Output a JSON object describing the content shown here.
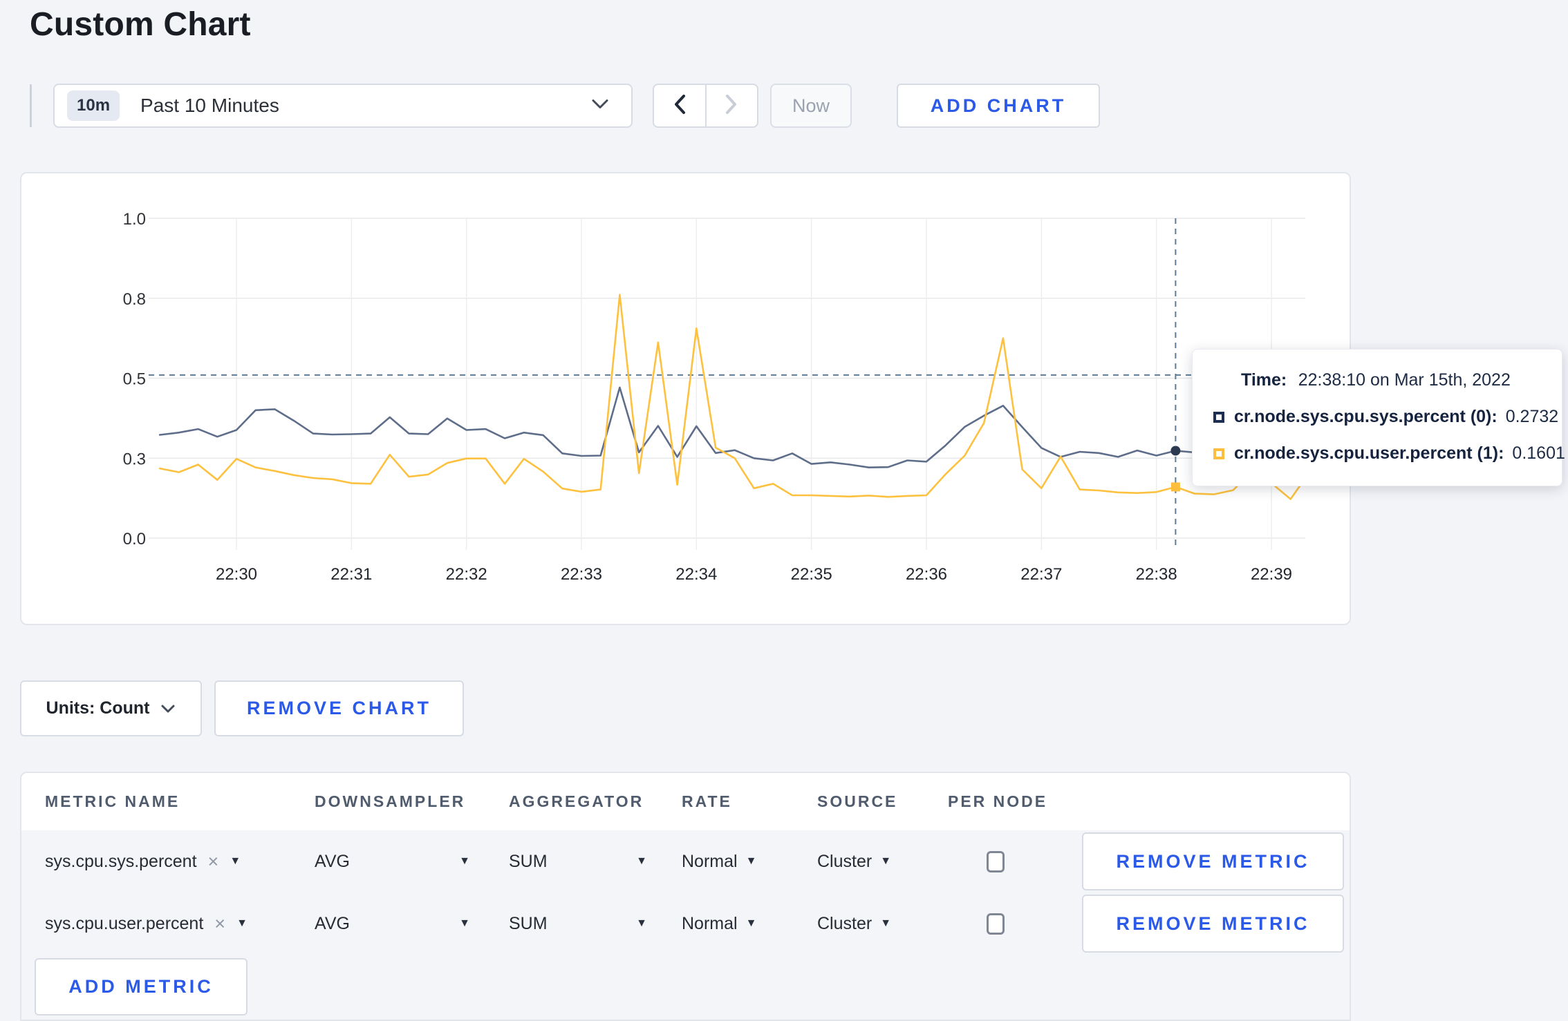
{
  "page": {
    "title": "Custom Chart"
  },
  "colors": {
    "accent_blue": "#2b5ae8",
    "series_sys": "#5e6d89",
    "series_user": "#fdc13f",
    "page_bg": "#f3f4f8"
  },
  "toolbar": {
    "range_badge": "10m",
    "range_label": "Past 10 Minutes",
    "now_label": "Now",
    "add_chart_label": "ADD CHART"
  },
  "chart_data": {
    "type": "line",
    "title": "",
    "xlabel": "",
    "ylabel": "",
    "ylim": [
      0.0,
      1.0
    ],
    "grid": true,
    "x_start": "22:29:20",
    "x_end": "22:39:20",
    "step_seconds": 10,
    "x_ticks": [
      "22:30",
      "22:31",
      "22:32",
      "22:33",
      "22:34",
      "22:35",
      "22:36",
      "22:37",
      "22:38",
      "22:39"
    ],
    "y_ticks": [
      {
        "label": "1.0",
        "value": 1.0
      },
      {
        "label": "0.8",
        "value": 0.75
      },
      {
        "label": "0.5",
        "value": 0.5
      },
      {
        "label": "0.3",
        "value": 0.25
      },
      {
        "label": "0.0",
        "value": 0.0
      }
    ],
    "series": [
      {
        "name": "cr.node.sys.cpu.sys.percent",
        "color": "#5e6d89",
        "values": [
          0.323,
          0.33,
          0.341,
          0.317,
          0.338,
          0.4,
          0.403,
          0.367,
          0.327,
          0.324,
          0.325,
          0.327,
          0.378,
          0.327,
          0.325,
          0.374,
          0.338,
          0.341,
          0.312,
          0.33,
          0.322,
          0.265,
          0.257,
          0.258,
          0.471,
          0.268,
          0.351,
          0.254,
          0.35,
          0.266,
          0.275,
          0.25,
          0.243,
          0.265,
          0.232,
          0.237,
          0.23,
          0.221,
          0.222,
          0.243,
          0.239,
          0.29,
          0.348,
          0.383,
          0.414,
          0.347,
          0.282,
          0.254,
          0.27,
          0.266,
          0.254,
          0.274,
          0.258,
          0.2732,
          0.268,
          0.262,
          0.268,
          0.278,
          0.27,
          0.267,
          0.27
        ]
      },
      {
        "name": "cr.node.sys.cpu.user.percent",
        "color": "#fdc13f",
        "values": [
          0.218,
          0.206,
          0.23,
          0.182,
          0.248,
          0.221,
          0.21,
          0.197,
          0.188,
          0.184,
          0.172,
          0.17,
          0.261,
          0.192,
          0.199,
          0.235,
          0.249,
          0.249,
          0.17,
          0.248,
          0.208,
          0.155,
          0.145,
          0.152,
          0.761,
          0.203,
          0.612,
          0.167,
          0.656,
          0.283,
          0.25,
          0.156,
          0.17,
          0.134,
          0.134,
          0.132,
          0.13,
          0.133,
          0.129,
          0.132,
          0.134,
          0.2,
          0.258,
          0.36,
          0.625,
          0.215,
          0.156,
          0.255,
          0.152,
          0.149,
          0.143,
          0.141,
          0.144,
          0.1601,
          0.139,
          0.137,
          0.15,
          0.21,
          0.172,
          0.122,
          0.207
        ]
      }
    ],
    "crosshair": {
      "index": 53,
      "time": "22:38:10",
      "line_value": 0.51,
      "points": [
        {
          "series": 0,
          "value": 0.2732,
          "shape": "circle",
          "color": "#2b3951"
        },
        {
          "series": 1,
          "value": 0.1601,
          "shape": "square",
          "color": "#fdbd3d"
        }
      ]
    },
    "legend_position": "tooltip"
  },
  "tooltip": {
    "time_label": "Time:",
    "time_value": "22:38:10 on Mar 15th, 2022",
    "series": [
      {
        "label": "cr.node.sys.cpu.sys.percent (0):",
        "value": "0.2732",
        "color": "#1e2e52"
      },
      {
        "label": "cr.node.sys.cpu.user.percent (1):",
        "value": "0.1601",
        "color": "#fdbd3d"
      }
    ]
  },
  "chart_controls": {
    "units_label": "Units: Count",
    "remove_chart_label": "REMOVE CHART"
  },
  "metrics_table": {
    "headers": [
      "METRIC NAME",
      "DOWNSAMPLER",
      "AGGREGATOR",
      "RATE",
      "SOURCE",
      "PER NODE"
    ],
    "rows": [
      {
        "metric": "sys.cpu.sys.percent",
        "downsampler": "AVG",
        "aggregator": "SUM",
        "rate": "Normal",
        "source": "Cluster",
        "per_node_checked": false,
        "remove_label": "REMOVE METRIC"
      },
      {
        "metric": "sys.cpu.user.percent",
        "downsampler": "AVG",
        "aggregator": "SUM",
        "rate": "Normal",
        "source": "Cluster",
        "per_node_checked": false,
        "remove_label": "REMOVE METRIC"
      }
    ],
    "add_metric_label": "ADD METRIC"
  },
  "icons": {
    "caret": "▼",
    "close": "×"
  }
}
